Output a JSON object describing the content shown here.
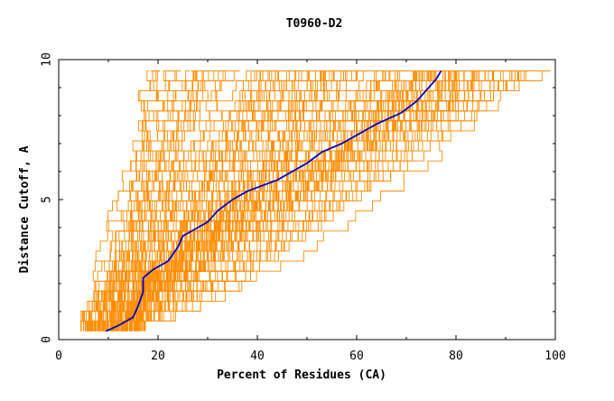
{
  "chart_data": {
    "type": "line",
    "title": "T0960-D2",
    "xlabel": "Percent of Residues (CA)",
    "ylabel": "Distance Cutoff, A",
    "xlim": [
      0,
      100
    ],
    "ylim": [
      0,
      10
    ],
    "x_ticks": [
      "0",
      "20",
      "40",
      "60",
      "80",
      "100"
    ],
    "y_ticks": [
      "0",
      "5",
      "10"
    ],
    "colors": {
      "background_models": "#ff8c00",
      "highlight": "#0000cd",
      "axes": "#000000"
    },
    "series": [
      {
        "role": "highlighted-model",
        "points": [
          [
            9.5,
            0.3
          ],
          [
            12,
            0.5
          ],
          [
            15,
            0.8
          ],
          [
            16,
            1.2
          ],
          [
            17,
            1.7
          ],
          [
            17,
            2.2
          ],
          [
            19,
            2.5
          ],
          [
            22,
            2.8
          ],
          [
            24,
            3.3
          ],
          [
            25,
            3.7
          ],
          [
            27,
            3.9
          ],
          [
            30,
            4.2
          ],
          [
            32,
            4.6
          ],
          [
            35,
            5.0
          ],
          [
            38,
            5.3
          ],
          [
            41,
            5.5
          ],
          [
            44,
            5.7
          ],
          [
            47,
            6.0
          ],
          [
            50,
            6.3
          ],
          [
            53,
            6.7
          ],
          [
            57,
            7.0
          ],
          [
            60,
            7.3
          ],
          [
            64,
            7.7
          ],
          [
            69,
            8.1
          ],
          [
            72,
            8.5
          ],
          [
            74,
            8.9
          ],
          [
            76,
            9.3
          ],
          [
            77,
            9.6
          ]
        ]
      },
      {
        "role": "other-models",
        "count": 150
      }
    ]
  }
}
